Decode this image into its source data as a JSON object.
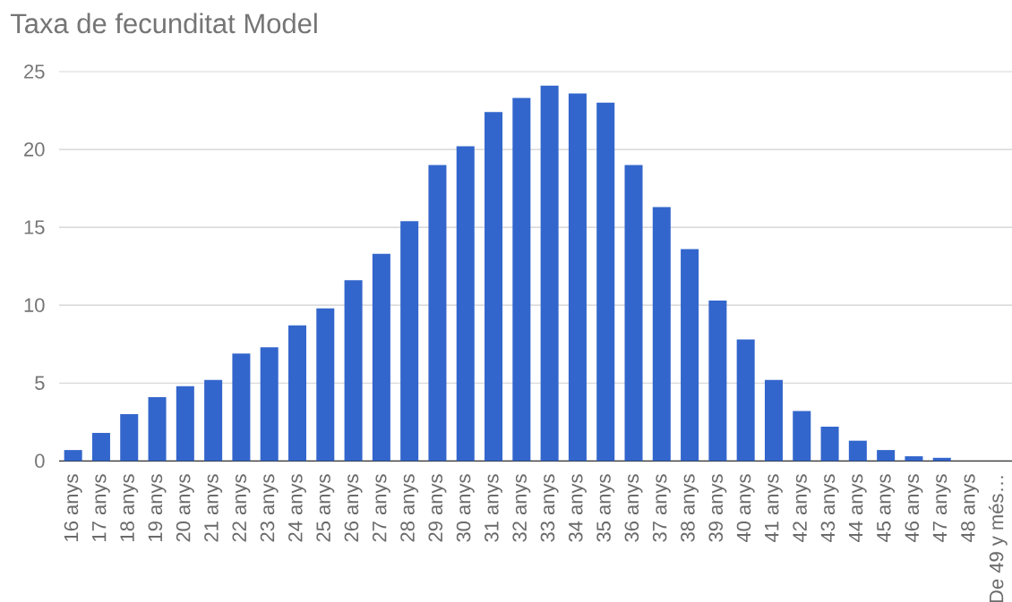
{
  "chart_data": {
    "type": "bar",
    "title": "Taxa de fecunditat Model",
    "categories": [
      "16 anys",
      "17 anys",
      "18 anys",
      "19 anys",
      "20 anys",
      "21 anys",
      "22 anys",
      "23 anys",
      "24 anys",
      "25 anys",
      "26 anys",
      "27 anys",
      "28 anys",
      "29 anys",
      "30 anys",
      "31 anys",
      "32 anys",
      "33 anys",
      "34 anys",
      "35 anys",
      "36 anys",
      "37 anys",
      "38 anys",
      "39 anys",
      "40 anys",
      "41 anys",
      "42 anys",
      "43 anys",
      "44 anys",
      "45 anys",
      "46 anys",
      "47 anys",
      "48 anys",
      "De 49 y més…"
    ],
    "values": [
      0.7,
      1.8,
      3.0,
      4.1,
      4.8,
      5.2,
      6.9,
      7.3,
      8.7,
      9.8,
      11.6,
      13.3,
      15.4,
      19.0,
      20.2,
      22.4,
      23.3,
      24.1,
      23.6,
      23.0,
      19.0,
      16.3,
      13.6,
      10.3,
      7.8,
      5.2,
      3.2,
      2.2,
      1.3,
      0.7,
      0.3,
      0.2,
      0,
      0
    ],
    "color": "#3366cc",
    "ylim": [
      0,
      25
    ],
    "yticks": [
      0,
      5,
      10,
      15,
      20,
      25
    ],
    "grid": "y"
  }
}
